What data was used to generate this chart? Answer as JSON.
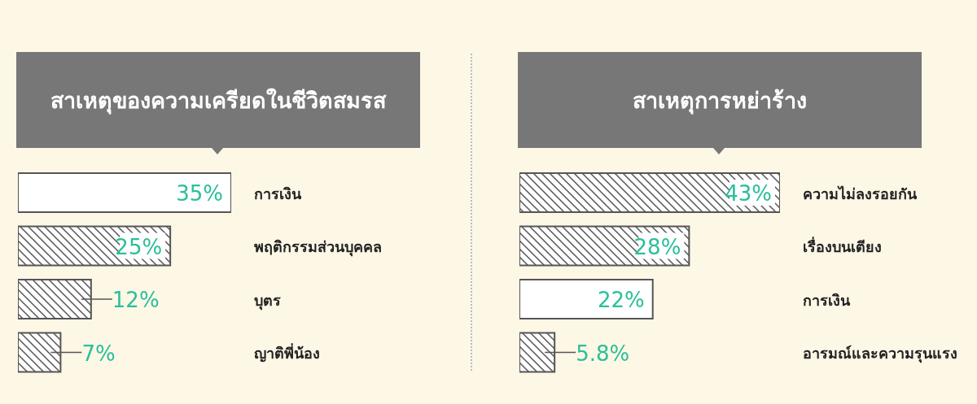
{
  "chart_data": [
    {
      "type": "bar",
      "orientation": "horizontal",
      "title": "สาเหตุของความเครียดในชีวิตสมรส",
      "categories": [
        "การเงิน",
        "พฤติกรรมส่วนบุคคล",
        "บุตร",
        "ญาติพี่น้อง"
      ],
      "values": [
        35,
        25,
        12,
        7
      ],
      "colors": [
        "#ffffff",
        "#555555",
        "#555555",
        "#555555"
      ],
      "value_labels": [
        "35%",
        "25%",
        "12%",
        "7%"
      ]
    },
    {
      "type": "bar",
      "orientation": "horizontal",
      "title": "สาเหตุการหย่าร้าง",
      "categories": [
        "ความไม่ลงรอยกัน",
        "เรื่องบนเตียง",
        "การเงิน",
        "อารมณ์และความรุนแรง"
      ],
      "values": [
        43,
        28,
        22,
        5.8
      ],
      "colors": [
        "#555555",
        "#555555",
        "#ffffff",
        "#555555"
      ],
      "value_labels": [
        "43%",
        "28%",
        "22%",
        "5.8%"
      ]
    }
  ]
}
